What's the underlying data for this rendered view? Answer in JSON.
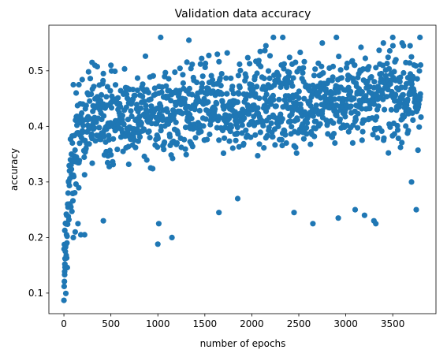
{
  "chart_data": {
    "type": "scatter",
    "title": "Validation data accuracy",
    "xlabel": "number of epochs",
    "ylabel": "accuracy",
    "xlim": [
      -160,
      3960
    ],
    "ylim": [
      0.063,
      0.582
    ],
    "x_ticks": [
      {
        "value": 0,
        "label": "0"
      },
      {
        "value": 500,
        "label": "500"
      },
      {
        "value": 1000,
        "label": "1000"
      },
      {
        "value": 1500,
        "label": "1500"
      },
      {
        "value": 2000,
        "label": "2000"
      },
      {
        "value": 2500,
        "label": "2500"
      },
      {
        "value": 3000,
        "label": "3000"
      },
      {
        "value": 3500,
        "label": "3500"
      }
    ],
    "y_ticks": [
      {
        "value": 0.1,
        "label": "0.1"
      },
      {
        "value": 0.2,
        "label": "0.2"
      },
      {
        "value": 0.3,
        "label": "0.3"
      },
      {
        "value": 0.4,
        "label": "0.4"
      },
      {
        "value": 0.5,
        "label": "0.5"
      }
    ],
    "grid": false,
    "marker_color": "#1f77b4",
    "point_count": 3800,
    "series": [
      {
        "color": "#1f77b4",
        "points": [
          [
            0,
            0.087
          ],
          [
            3,
            0.112
          ],
          [
            5,
            0.121
          ],
          [
            8,
            0.133
          ],
          [
            10,
            0.152
          ],
          [
            12,
            0.162
          ],
          [
            15,
            0.175
          ],
          [
            18,
            0.183
          ],
          [
            20,
            0.187
          ],
          [
            25,
            0.168
          ],
          [
            28,
            0.205
          ],
          [
            30,
            0.24
          ],
          [
            35,
            0.225
          ],
          [
            40,
            0.26
          ],
          [
            45,
            0.28
          ],
          [
            50,
            0.3
          ],
          [
            60,
            0.32
          ],
          [
            70,
            0.34
          ],
          [
            80,
            0.35
          ],
          [
            90,
            0.37
          ],
          [
            100,
            0.2
          ],
          [
            120,
            0.21
          ],
          [
            150,
            0.225
          ],
          [
            180,
            0.205
          ],
          [
            220,
            0.205
          ],
          [
            100,
            0.475
          ],
          [
            130,
            0.46
          ],
          [
            160,
            0.475
          ],
          [
            200,
            0.44
          ],
          [
            250,
            0.46
          ],
          [
            300,
            0.515
          ],
          [
            330,
            0.51
          ],
          [
            420,
            0.495
          ],
          [
            500,
            0.51
          ],
          [
            420,
            0.23
          ],
          [
            1000,
            0.188
          ],
          [
            1010,
            0.225
          ],
          [
            1150,
            0.2
          ],
          [
            1030,
            0.56
          ],
          [
            1330,
            0.555
          ],
          [
            1650,
            0.245
          ],
          [
            1850,
            0.27
          ],
          [
            2150,
            0.545
          ],
          [
            2230,
            0.56
          ],
          [
            2330,
            0.56
          ],
          [
            2450,
            0.245
          ],
          [
            2650,
            0.225
          ],
          [
            2750,
            0.55
          ],
          [
            2900,
            0.56
          ],
          [
            2920,
            0.235
          ],
          [
            3100,
            0.25
          ],
          [
            3200,
            0.24
          ],
          [
            3300,
            0.23
          ],
          [
            3320,
            0.225
          ],
          [
            3400,
            0.55
          ],
          [
            3500,
            0.56
          ],
          [
            3600,
            0.55
          ],
          [
            3700,
            0.3
          ],
          [
            3750,
            0.25
          ],
          [
            3790,
            0.56
          ]
        ]
      }
    ]
  }
}
